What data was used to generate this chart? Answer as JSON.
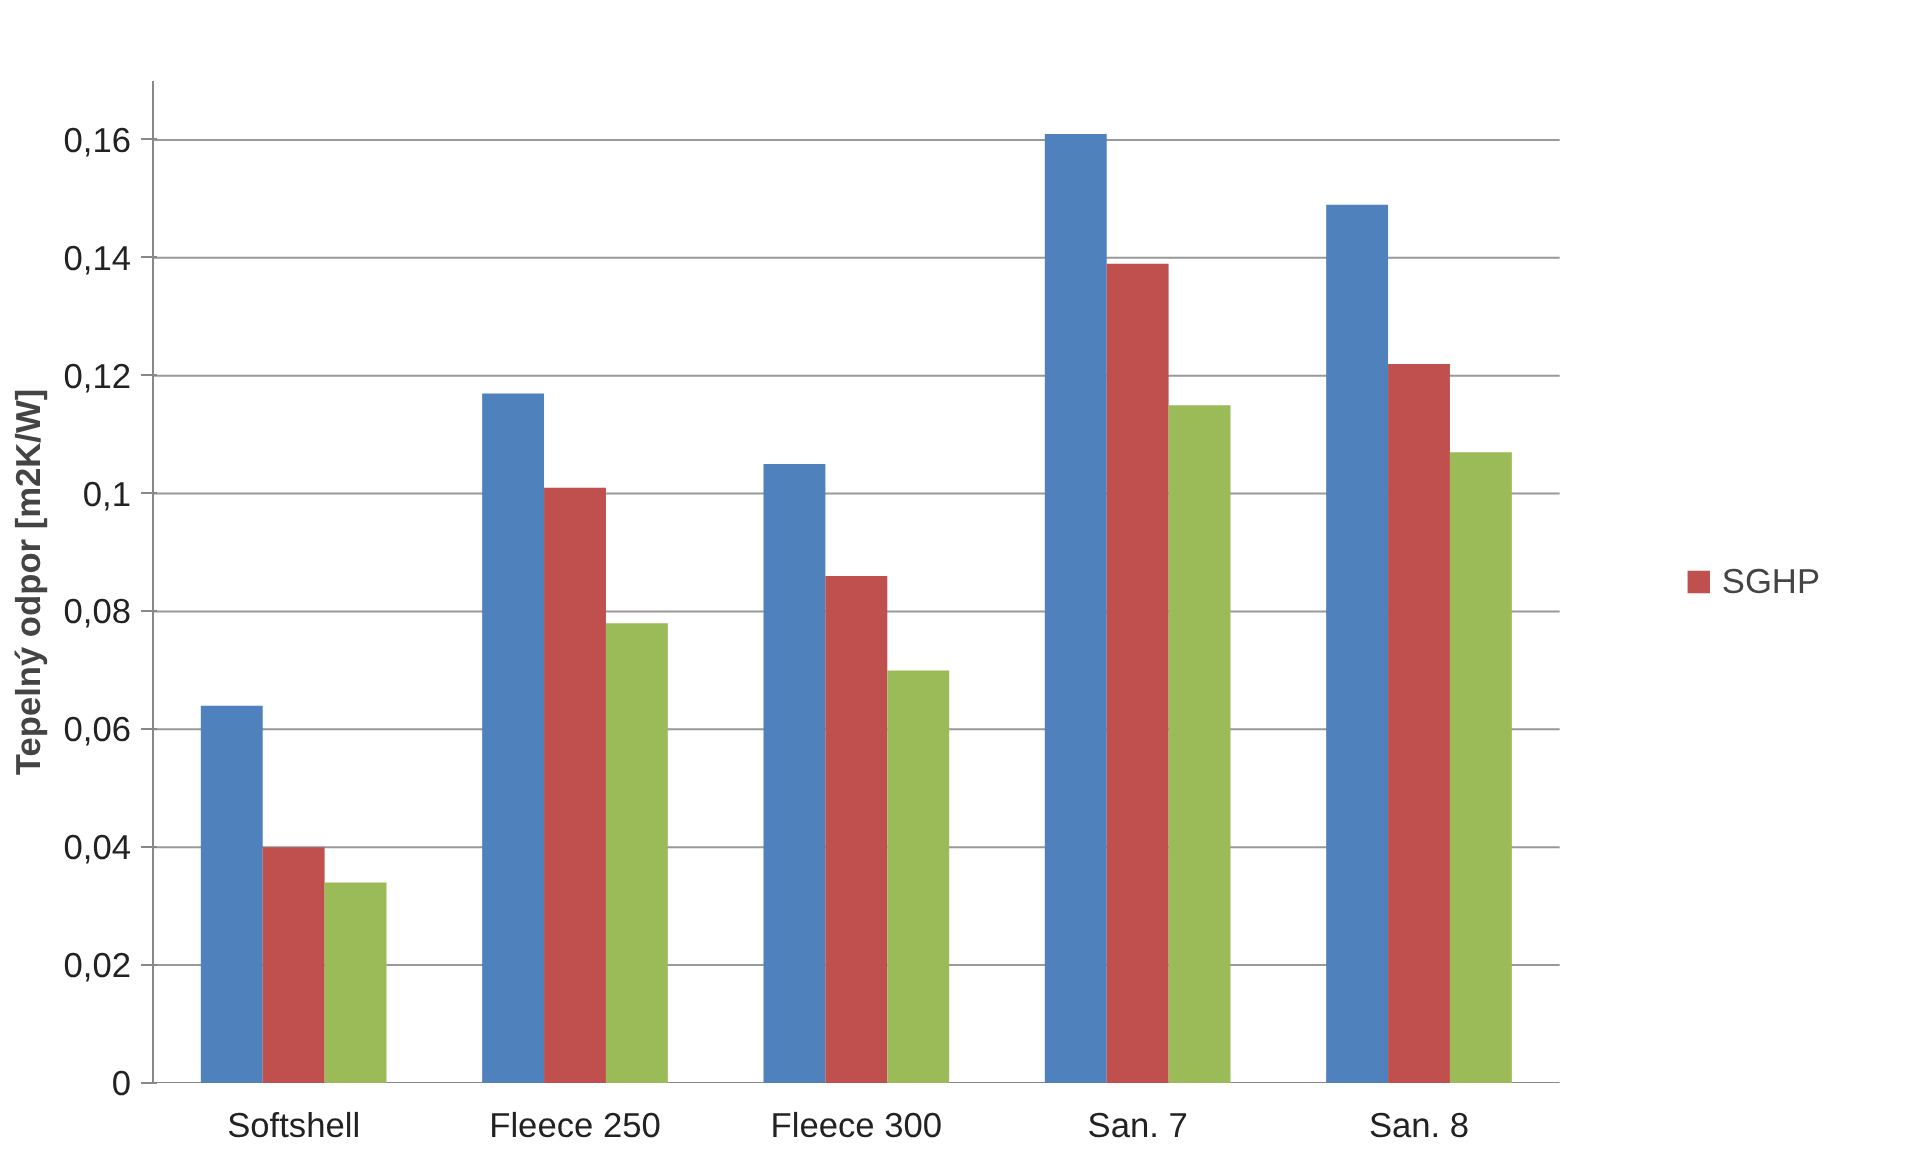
{
  "chart_data": {
    "type": "bar",
    "ylabel": "Tepelný odpor [m2K/W]",
    "categories": [
      "Softshell",
      "Fleece 250",
      "Fleece 300",
      "San. 7",
      "San. 8"
    ],
    "series": [
      {
        "color": "#4f81bd",
        "values": [
          0.064,
          0.117,
          0.105,
          0.161,
          0.149
        ]
      },
      {
        "name": "SGHP",
        "color": "#c0504d",
        "values": [
          0.04,
          0.101,
          0.086,
          0.139,
          0.122
        ]
      },
      {
        "color": "#9bbb59",
        "values": [
          0.034,
          0.078,
          0.07,
          0.115,
          0.107
        ]
      }
    ],
    "ylim": [
      0,
      0.17
    ],
    "yticks": [
      0,
      {
        "value": 0.02,
        "label": "0,02"
      },
      {
        "value": 0.04,
        "label": "0,04"
      },
      {
        "value": 0.06,
        "label": "0,06"
      },
      {
        "value": 0.08,
        "label": "0,08"
      },
      {
        "value": 0.1,
        "label": "0,1"
      },
      {
        "value": 0.12,
        "label": "0,12"
      },
      {
        "value": 0.14,
        "label": "0,14"
      },
      {
        "value": 0.16,
        "label": "0,16"
      }
    ],
    "grid": "y",
    "legend": "right"
  }
}
